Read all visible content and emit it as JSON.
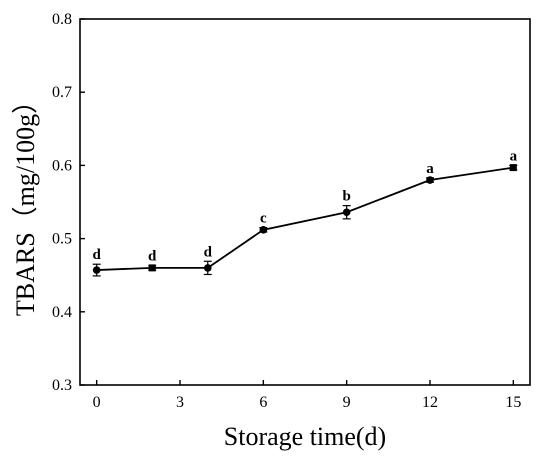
{
  "chart_data": {
    "type": "line",
    "xlabel": "Storage time(d)",
    "ylabel": "TBARS（mg/100g）",
    "xlim": [
      -0.6,
      15.6
    ],
    "ylim": [
      0.3,
      0.8
    ],
    "xticks": [
      0,
      3,
      6,
      9,
      12,
      15
    ],
    "xtick_labels": [
      "0",
      "3",
      "6",
      "9",
      "12",
      "15"
    ],
    "yticks": [
      0.3,
      0.4,
      0.5,
      0.6,
      0.7,
      0.8
    ],
    "ytick_labels": [
      "0.3",
      "0.4",
      "0.5",
      "0.6",
      "0.7",
      "0.8"
    ],
    "grid": false,
    "series": [
      {
        "x": [
          0,
          2,
          4,
          6,
          9,
          12,
          15
        ],
        "values": [
          0.457,
          0.46,
          0.46,
          0.512,
          0.536,
          0.58,
          0.597
        ],
        "errors": [
          0.008,
          0.003,
          0.009,
          0.003,
          0.009,
          0.003,
          0.003
        ],
        "markers": [
          "circle",
          "square",
          "circle",
          "circle",
          "circle",
          "circle",
          "square"
        ],
        "significance": [
          "d",
          "d",
          "d",
          "c",
          "b",
          "a",
          "a"
        ]
      }
    ]
  }
}
